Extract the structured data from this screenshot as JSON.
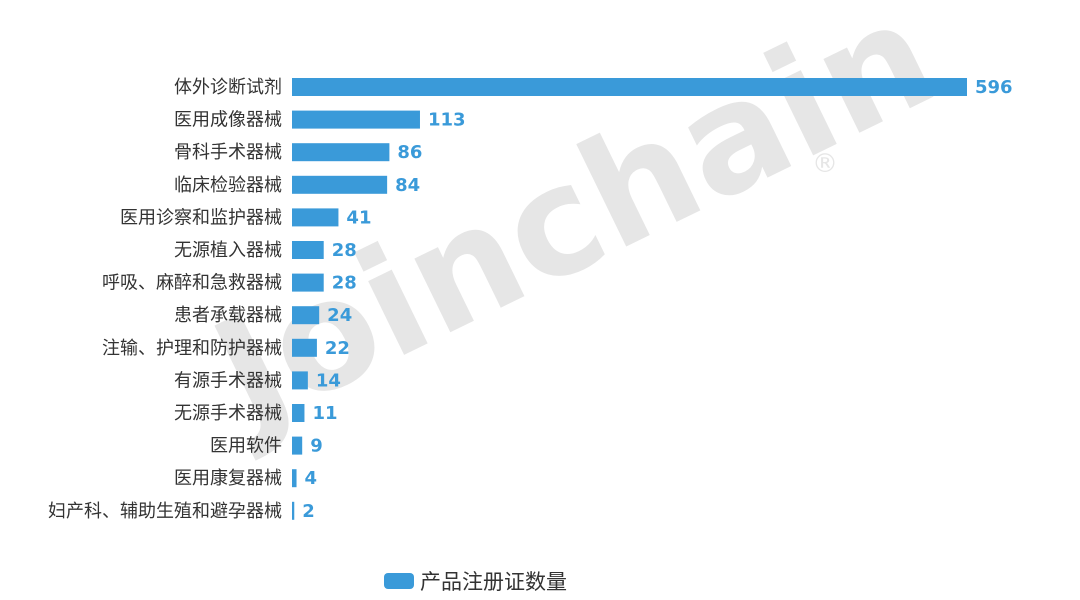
{
  "chart_data": {
    "type": "bar",
    "orientation": "horizontal",
    "categories": [
      "体外诊断试剂",
      "医用成像器械",
      "骨科手术器械",
      "临床检验器械",
      "医用诊察和监护器械",
      "无源植入器械",
      "呼吸、麻醉和急救器械",
      "患者承载器械",
      "注输、护理和防护器械",
      "有源手术器械",
      "无源手术器械",
      "医用软件",
      "医用康复器械",
      "妇产科、辅助生殖和避孕器械"
    ],
    "series": [
      {
        "name": "产品注册证数量",
        "values": [
          596,
          113,
          86,
          84,
          41,
          28,
          28,
          24,
          22,
          14,
          11,
          9,
          4,
          2
        ],
        "color": "#3a9ad9"
      }
    ],
    "xlim": [
      0,
      596
    ],
    "data_labels": true,
    "grid": false,
    "legend_position": "bottom"
  },
  "watermark": {
    "text": "Joinchain",
    "mark": "®"
  }
}
